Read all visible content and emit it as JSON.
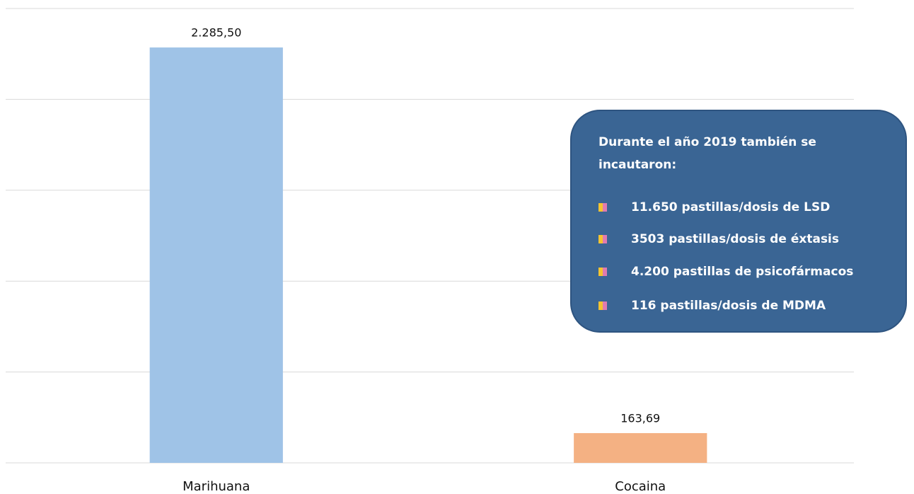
{
  "chart_data": {
    "type": "bar",
    "categories": [
      "Marihuana",
      "Cocaina"
    ],
    "values": [
      2285.5,
      163.69
    ],
    "value_labels": [
      "2.285,50",
      "163,69"
    ],
    "colors": [
      "#9fc3e7",
      "#f4b183"
    ],
    "ylim": [
      0,
      2500
    ],
    "yticks": [
      0,
      500,
      1000,
      1500,
      2000,
      2500
    ],
    "grid": true,
    "annotation": {
      "title": "Durante el año 2019 también se incautaron:",
      "items": [
        "11.650 pastillas/dosis de LSD",
        "3503 pastillas/dosis de éxtasis",
        "4.200 pastillas de psicofármacos",
        "116 pastillas/dosis de MDMA"
      ]
    }
  }
}
